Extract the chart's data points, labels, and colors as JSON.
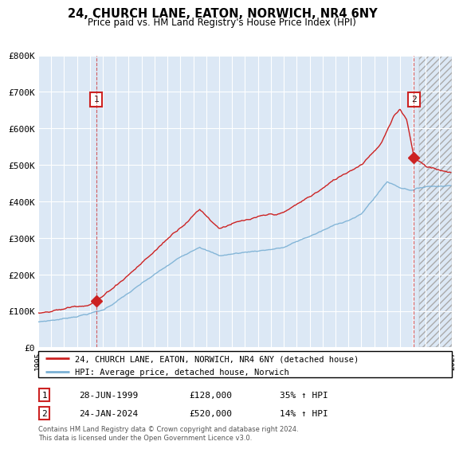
{
  "title": "24, CHURCH LANE, EATON, NORWICH, NR4 6NY",
  "subtitle": "Price paid vs. HM Land Registry's House Price Index (HPI)",
  "legend_line1": "24, CHURCH LANE, EATON, NORWICH, NR4 6NY (detached house)",
  "legend_line2": "HPI: Average price, detached house, Norwich",
  "sale1_label": "1",
  "sale1_date": "28-JUN-1999",
  "sale1_price": "£128,000",
  "sale1_hpi": "35% ↑ HPI",
  "sale1_year": 1999.49,
  "sale1_value": 128000,
  "sale2_label": "2",
  "sale2_date": "24-JAN-2024",
  "sale2_price": "£520,000",
  "sale2_hpi": "14% ↑ HPI",
  "sale2_year": 2024.07,
  "sale2_value": 520000,
  "hpi_color": "#7ab0d4",
  "price_color": "#cc2222",
  "marker_color": "#cc2222",
  "chart_bg": "#dce8f5",
  "grid_color": "#ffffff",
  "footer": "Contains HM Land Registry data © Crown copyright and database right 2024.\nThis data is licensed under the Open Government Licence v3.0.",
  "ylim": [
    0,
    800000
  ],
  "xlim_start": 1995,
  "xlim_end": 2027
}
